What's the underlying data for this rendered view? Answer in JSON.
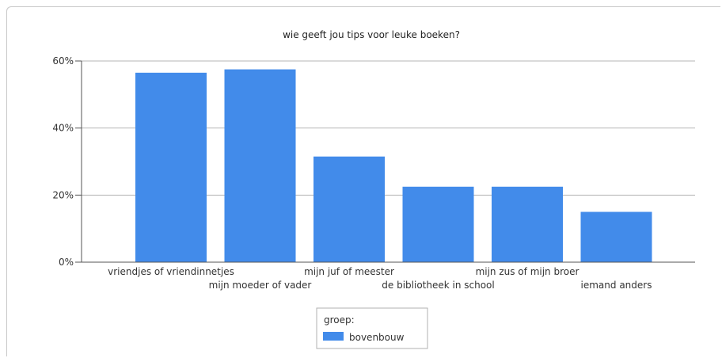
{
  "chart_data": {
    "type": "bar",
    "title": "wie geeft jou tips voor leuke boeken?",
    "categories": [
      "vriendjes of vriendinnetjes",
      "mijn moeder of vader",
      "mijn juf of meester",
      "de bibliotheek in school",
      "mijn zus of mijn broer",
      "iemand anders"
    ],
    "series": [
      {
        "name": "bovenbouw",
        "values": [
          56.5,
          57.5,
          31.5,
          22.5,
          22.5,
          15
        ]
      }
    ],
    "ylim": [
      0,
      60
    ],
    "y_ticks": [
      "0%",
      "20%",
      "40%",
      "60%"
    ],
    "y_tick_values": [
      0,
      20,
      40,
      60
    ],
    "xlabel": "",
    "ylabel": "",
    "grid": true,
    "legend": {
      "title": "groep:",
      "placement": "bottom-center"
    },
    "colors": {
      "bar": "#428bea",
      "grid": "#b5b5b5",
      "axis": "#555555"
    }
  }
}
